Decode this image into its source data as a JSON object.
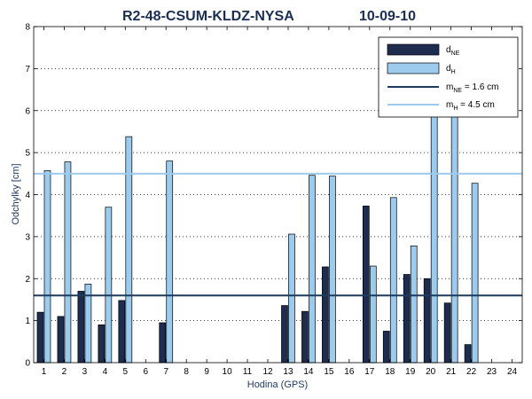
{
  "chart_data": {
    "type": "bar",
    "title": "R2-48-CSUM-KLDZ-NYSA",
    "date": "10-09-10",
    "xlabel": "Hodina (GPS)",
    "ylabel": "Odchylky [cm]",
    "ylim": [
      0,
      8
    ],
    "yticks": [
      "0",
      "1",
      "2",
      "3",
      "4",
      "5",
      "6",
      "7",
      "8"
    ],
    "grid": "horizontal dotted",
    "legend_position": "top-right",
    "categories": [
      "1",
      "2",
      "3",
      "4",
      "5",
      "6",
      "7",
      "8",
      "9",
      "10",
      "11",
      "12",
      "13",
      "14",
      "15",
      "16",
      "17",
      "18",
      "19",
      "20",
      "21",
      "22",
      "23",
      "24"
    ],
    "series": [
      {
        "name": "NE",
        "legend_main": "d",
        "legend_sub": "NE",
        "color": "#1e2c4f",
        "values": [
          1.2,
          1.1,
          1.7,
          0.9,
          1.48,
          null,
          0.95,
          null,
          null,
          null,
          null,
          null,
          1.36,
          1.22,
          2.28,
          null,
          3.73,
          0.75,
          2.1,
          2.0,
          1.42,
          0.43,
          null,
          null
        ]
      },
      {
        "name": "H",
        "legend_main": "d",
        "legend_sub": "H",
        "color": "#9ccbed",
        "values": [
          4.57,
          4.78,
          1.87,
          3.7,
          5.38,
          null,
          4.8,
          null,
          null,
          null,
          null,
          null,
          3.06,
          4.46,
          4.44,
          null,
          2.3,
          3.93,
          2.78,
          6.3,
          6.3,
          4.27,
          null,
          null
        ]
      }
    ],
    "reference_lines": [
      {
        "value": 1.6,
        "color": "#1e3a5c",
        "legend_main": "m",
        "legend_sub": "NE",
        "legend_tail": " = 1.6 cm"
      },
      {
        "value": 4.5,
        "color": "#9ccbed",
        "legend_main": "m",
        "legend_sub": "H",
        "legend_tail": "  = 4.5 cm"
      }
    ]
  }
}
